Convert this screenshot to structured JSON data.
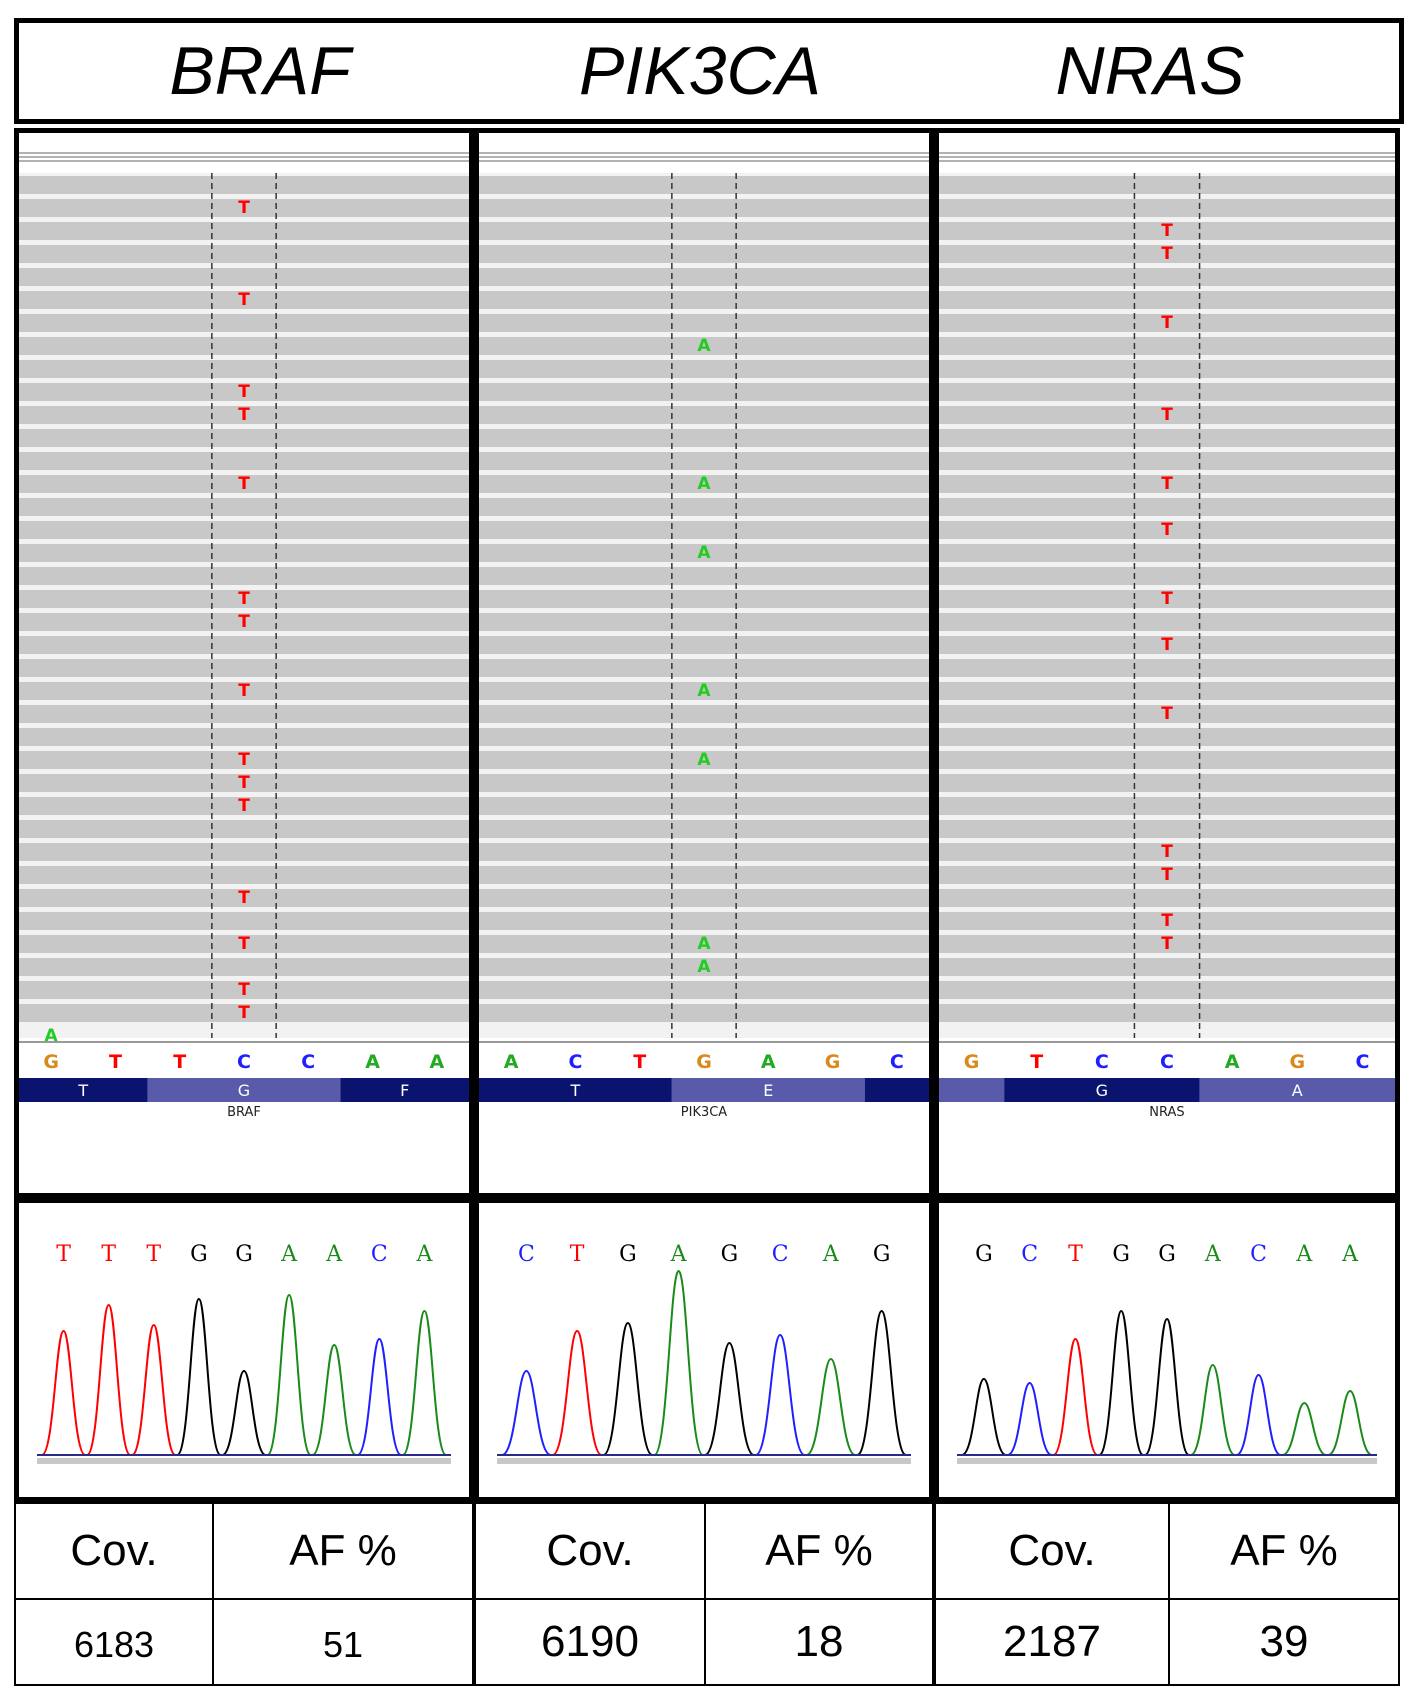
{
  "figure": {
    "columns": [
      {
        "gene": "BRAF",
        "igv": {
          "variant_base": "T",
          "variant_color": "#ff0000",
          "variant_rows": [
            1,
            5,
            9,
            10,
            13,
            18,
            19,
            22,
            25,
            26,
            27,
            31,
            33,
            35,
            36
          ],
          "stray": {
            "base": "A",
            "color": "#22cc22",
            "row": 37,
            "lane": 0
          },
          "partial_last": true,
          "ref_seq": [
            {
              "b": "G",
              "c": "#d88a1c"
            },
            {
              "b": "T",
              "c": "#ff0000"
            },
            {
              "b": "T",
              "c": "#ff0000"
            },
            {
              "b": "C",
              "c": "#2020ff"
            },
            {
              "b": "C",
              "c": "#2020ff"
            },
            {
              "b": "A",
              "c": "#22aa22"
            },
            {
              "b": "A",
              "c": "#22aa22"
            }
          ],
          "amino_track": [
            {
              "label": "T",
              "shade": "dark",
              "span": 2
            },
            {
              "label": "G",
              "shade": "light",
              "span": 3
            },
            {
              "label": "F",
              "shade": "dark",
              "span": 2
            }
          ],
          "gene_label": "BRAF"
        },
        "trace": {
          "bases": [
            {
              "b": "T",
              "c": "#ff0000"
            },
            {
              "b": "T",
              "c": "#ff0000"
            },
            {
              "b": "T",
              "c": "#ff0000"
            },
            {
              "b": "G",
              "c": "#000000"
            },
            {
              "b": "G",
              "c": "#000000"
            },
            {
              "b": "A",
              "c": "#1a8a1a"
            },
            {
              "b": "A",
              "c": "#1a8a1a"
            },
            {
              "b": "C",
              "c": "#2020ff"
            },
            {
              "b": "A",
              "c": "#1a8a1a"
            }
          ],
          "peak_levels": [
            0.62,
            0.75,
            0.65,
            0.78,
            0.42,
            0.8,
            0.55,
            0.58,
            0.72
          ]
        },
        "cov_header": "Cov.",
        "af_header": "AF %",
        "cov": "6183",
        "af": "51"
      },
      {
        "gene": "PIK3CA",
        "igv": {
          "variant_base": "A",
          "variant_color": "#22cc22",
          "variant_rows": [
            7,
            13,
            16,
            22,
            25,
            33,
            34
          ],
          "stray": null,
          "partial_last": false,
          "ref_seq": [
            {
              "b": "A",
              "c": "#22aa22"
            },
            {
              "b": "C",
              "c": "#2020ff"
            },
            {
              "b": "T",
              "c": "#ff0000"
            },
            {
              "b": "G",
              "c": "#d88a1c"
            },
            {
              "b": "A",
              "c": "#22aa22"
            },
            {
              "b": "G",
              "c": "#d88a1c"
            },
            {
              "b": "C",
              "c": "#2020ff"
            }
          ],
          "amino_track": [
            {
              "label": "T",
              "shade": "dark",
              "span": 3
            },
            {
              "label": "E",
              "shade": "light",
              "span": 3
            },
            {
              "label": "",
              "shade": "dark",
              "span": 1
            }
          ],
          "gene_label": "PIK3CA"
        },
        "trace": {
          "bases": [
            {
              "b": "C",
              "c": "#2020ff"
            },
            {
              "b": "T",
              "c": "#ff0000"
            },
            {
              "b": "G",
              "c": "#000000"
            },
            {
              "b": "A",
              "c": "#1a8a1a"
            },
            {
              "b": "G",
              "c": "#000000"
            },
            {
              "b": "C",
              "c": "#2020ff"
            },
            {
              "b": "A",
              "c": "#1a8a1a"
            },
            {
              "b": "G",
              "c": "#000000"
            }
          ],
          "peak_levels": [
            0.42,
            0.62,
            0.66,
            0.92,
            0.56,
            0.6,
            0.48,
            0.72
          ]
        },
        "cov_header": "Cov.",
        "af_header": "AF %",
        "cov": "6190",
        "af": "18"
      },
      {
        "gene": "NRAS",
        "igv": {
          "variant_base": "T",
          "variant_color": "#ff0000",
          "variant_rows": [
            2,
            3,
            6,
            10,
            13,
            15,
            18,
            20,
            23,
            29,
            30,
            32,
            33
          ],
          "stray": null,
          "partial_last": false,
          "ref_seq": [
            {
              "b": "G",
              "c": "#d88a1c"
            },
            {
              "b": "T",
              "c": "#ff0000"
            },
            {
              "b": "C",
              "c": "#2020ff"
            },
            {
              "b": "C",
              "c": "#2020ff"
            },
            {
              "b": "A",
              "c": "#22aa22"
            },
            {
              "b": "G",
              "c": "#d88a1c"
            },
            {
              "b": "C",
              "c": "#2020ff"
            }
          ],
          "amino_track": [
            {
              "label": "",
              "shade": "light",
              "span": 1
            },
            {
              "label": "G",
              "shade": "dark",
              "span": 3
            },
            {
              "label": "A",
              "shade": "light",
              "span": 3
            }
          ],
          "gene_label": "NRAS"
        },
        "trace": {
          "bases": [
            {
              "b": "G",
              "c": "#000000"
            },
            {
              "b": "C",
              "c": "#2020ff"
            },
            {
              "b": "T",
              "c": "#ff0000"
            },
            {
              "b": "G",
              "c": "#000000"
            },
            {
              "b": "G",
              "c": "#000000"
            },
            {
              "b": "A",
              "c": "#1a8a1a"
            },
            {
              "b": "C",
              "c": "#2020ff"
            },
            {
              "b": "A",
              "c": "#1a8a1a"
            },
            {
              "b": "A",
              "c": "#1a8a1a"
            }
          ],
          "peak_levels": [
            0.38,
            0.36,
            0.58,
            0.72,
            0.68,
            0.45,
            0.4,
            0.26,
            0.32
          ]
        },
        "cov_header": "Cov.",
        "af_header": "AF %",
        "cov": "2187",
        "af": "39"
      }
    ]
  },
  "colors": {
    "read_gray": "#c8c8c8",
    "read_gap": "#f2f2f2",
    "track_dark": "#0a146e",
    "track_light": "#5a5aaa",
    "border": "#000000"
  }
}
